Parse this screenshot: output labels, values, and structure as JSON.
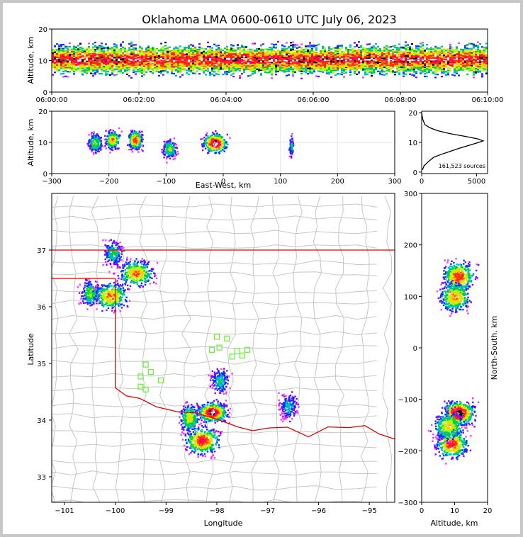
{
  "chart_data": [
    {
      "id": "time-height",
      "type": "heatmap",
      "title": "Oklahoma LMA 0600-0610 UTC July 06, 2023",
      "ylabel": "Altitude, km",
      "xlabel": "",
      "ylim": [
        0,
        20
      ],
      "yticks": [
        "0",
        "10",
        "20"
      ],
      "xticks": [
        "06:00:00",
        "06:02:00",
        "06:04:00",
        "06:06:00",
        "06:08:00",
        "06:10:00"
      ],
      "grid": true
    },
    {
      "id": "east-west-altitude",
      "type": "heatmap",
      "xlabel": "East-West, km",
      "ylabel": "Altitude, km",
      "xlim": [
        -300,
        300
      ],
      "ylim": [
        0,
        20
      ],
      "xticks": [
        "−300",
        "−200",
        "−100",
        "0",
        "100",
        "200",
        "300"
      ],
      "yticks": [
        "0",
        "10",
        "20"
      ],
      "clusters": [
        {
          "x": -225,
          "z": 10,
          "level": 0.5
        },
        {
          "x": -195,
          "z": 11,
          "level": 0.7
        },
        {
          "x": -155,
          "z": 11,
          "level": 0.8
        },
        {
          "x": -95,
          "z": 8,
          "level": 0.5
        },
        {
          "x": -15,
          "z": 10,
          "level": 1.0
        },
        {
          "x": 118,
          "z": 9,
          "level": 0.4
        }
      ]
    },
    {
      "id": "altitude-histogram",
      "type": "line",
      "xlim": [
        0,
        6000
      ],
      "ylim": [
        -0.5,
        20.5
      ],
      "xticks": [
        "0",
        "5000"
      ],
      "yticks": [
        "0",
        "10",
        "20"
      ],
      "annotation": "161,523 sources",
      "profile": [
        {
          "count": 80,
          "alt": 0.8
        },
        {
          "count": 200,
          "alt": 2
        },
        {
          "count": 600,
          "alt": 3.5
        },
        {
          "count": 1100,
          "alt": 5
        },
        {
          "count": 1800,
          "alt": 6
        },
        {
          "count": 2600,
          "alt": 7
        },
        {
          "count": 3400,
          "alt": 8
        },
        {
          "count": 4300,
          "alt": 9
        },
        {
          "count": 5200,
          "alt": 10
        },
        {
          "count": 5600,
          "alt": 10.5
        },
        {
          "count": 5100,
          "alt": 11.2
        },
        {
          "count": 4000,
          "alt": 12
        },
        {
          "count": 2500,
          "alt": 13
        },
        {
          "count": 1400,
          "alt": 14
        },
        {
          "count": 700,
          "alt": 15
        },
        {
          "count": 300,
          "alt": 16
        },
        {
          "count": 120,
          "alt": 17.5
        },
        {
          "count": 40,
          "alt": 19
        },
        {
          "count": 10,
          "alt": 20
        }
      ]
    },
    {
      "id": "plan-view-map",
      "type": "heatmap",
      "xlabel": "Longitude",
      "ylabel": "Latitude",
      "xlim": [
        -101.25,
        -94.5
      ],
      "ylim": [
        32.55,
        38.0
      ],
      "xticks": [
        "−101",
        "−100",
        "−99",
        "−98",
        "−97",
        "−96",
        "−95"
      ],
      "yticks": [
        "33",
        "34",
        "35",
        "36",
        "37"
      ],
      "clusters": [
        {
          "lon": -100.5,
          "lat": 36.25,
          "level": 0.5
        },
        {
          "lon": -100.1,
          "lat": 36.2,
          "level": 0.7
        },
        {
          "lon": -99.6,
          "lat": 36.6,
          "level": 0.7
        },
        {
          "lon": -100.05,
          "lat": 36.95,
          "level": 0.4
        },
        {
          "lon": -98.3,
          "lat": 33.65,
          "level": 0.85
        },
        {
          "lon": -98.55,
          "lat": 34.05,
          "level": 0.6
        },
        {
          "lon": -98.1,
          "lat": 34.15,
          "level": 1.0
        },
        {
          "lon": -97.95,
          "lat": 34.7,
          "level": 0.35
        },
        {
          "lon": -96.6,
          "lat": 34.25,
          "level": 0.3
        }
      ],
      "stations": [
        [
          -98.0,
          35.47
        ],
        [
          -97.8,
          35.44
        ],
        [
          -97.95,
          35.28
        ],
        [
          -98.1,
          35.24
        ],
        [
          -97.6,
          35.22
        ],
        [
          -97.4,
          35.24
        ],
        [
          -97.5,
          35.14
        ],
        [
          -97.7,
          35.12
        ],
        [
          -99.4,
          34.98
        ],
        [
          -99.3,
          34.85
        ],
        [
          -99.5,
          34.77
        ],
        [
          -99.1,
          34.7
        ],
        [
          -99.5,
          34.59
        ],
        [
          -99.4,
          34.54
        ]
      ]
    },
    {
      "id": "north-south-altitude",
      "type": "heatmap",
      "xlabel": "Altitude, km",
      "ylabel": "North-South, km",
      "xlim": [
        0,
        20
      ],
      "ylim": [
        -300,
        300
      ],
      "xticks": [
        "0",
        "10",
        "20"
      ],
      "yticks": [
        "300",
        "200",
        "100",
        "0",
        "−100",
        "−200",
        "−300"
      ],
      "clusters": [
        {
          "z": 11,
          "y": 140,
          "level": 0.8
        },
        {
          "z": 10,
          "y": 100,
          "level": 0.7
        },
        {
          "z": 11,
          "y": -125,
          "level": 1.0
        },
        {
          "z": 9,
          "y": -185,
          "level": 0.8
        },
        {
          "z": 8,
          "y": -150,
          "level": 0.6
        }
      ]
    }
  ]
}
